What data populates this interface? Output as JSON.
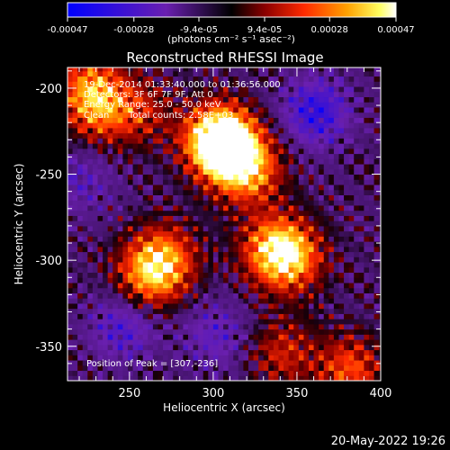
{
  "chart_data": {
    "type": "heatmap",
    "title": "Reconstructed RHESSI Image",
    "xlabel": "Heliocentric X (arcsec)",
    "ylabel": "Heliocentric Y (arcsec)",
    "xlim": [
      213,
      400
    ],
    "ylim": [
      -370,
      -188
    ],
    "x_ticks": [
      250,
      300,
      350,
      400
    ],
    "y_ticks": [
      -200,
      -250,
      -300,
      -350
    ],
    "annotations": {
      "time": "19-Dec-2014 01:33:40.000 to 01:36:56.000",
      "detectors": "Detectors: 3F 6F 7F 9F, Att 0",
      "energy": "Energy Range: 25.0 - 50.0 keV",
      "method": "Clean",
      "counts": "Total counts: 2.58E+03",
      "peak": "Position of Peak = [307,-236]"
    },
    "colorbar": {
      "ticks": [
        "-0.00047",
        "-0.00028",
        "-9.4e-05",
        "9.4e-05",
        "0.00028",
        "0.00047"
      ],
      "tick_values": [
        -0.00047,
        -0.00028,
        -9.4e-05,
        9.4e-05,
        0.00028,
        0.00047
      ],
      "range": [
        -0.00047,
        0.00047
      ],
      "units": "(photons cm⁻² s⁻¹ asec⁻²)",
      "colors": [
        "#0000ff",
        "#6a1fb0",
        "#000000",
        "#8a0000",
        "#ff2a00",
        "#ffa000",
        "#ffff60",
        "#ffffff"
      ]
    },
    "peak_position": [
      307,
      -236
    ],
    "sources": [
      {
        "x": 307,
        "y": -236,
        "intensity": 1.0
      },
      {
        "x": 300,
        "y": -230,
        "intensity": 0.85
      },
      {
        "x": 320,
        "y": -250,
        "intensity": 0.7
      },
      {
        "x": 335,
        "y": -295,
        "intensity": 0.75
      },
      {
        "x": 345,
        "y": -300,
        "intensity": 0.65
      },
      {
        "x": 260,
        "y": -310,
        "intensity": 0.7
      },
      {
        "x": 270,
        "y": -300,
        "intensity": 0.6
      },
      {
        "x": 225,
        "y": -200,
        "intensity": 0.6
      },
      {
        "x": 230,
        "y": -215,
        "intensity": 0.5
      },
      {
        "x": 380,
        "y": -365,
        "intensity": 0.6
      },
      {
        "x": 340,
        "y": -355,
        "intensity": 0.45
      },
      {
        "x": 255,
        "y": -215,
        "intensity": 0.4
      }
    ],
    "negative_regions": [
      {
        "x": 360,
        "y": -215,
        "intensity": -0.6
      },
      {
        "x": 245,
        "y": -340,
        "intensity": -0.45
      },
      {
        "x": 300,
        "y": -345,
        "intensity": -0.35
      },
      {
        "x": 220,
        "y": -255,
        "intensity": -0.3
      }
    ]
  },
  "footer": {
    "date": "20-May-2022 19:26"
  }
}
